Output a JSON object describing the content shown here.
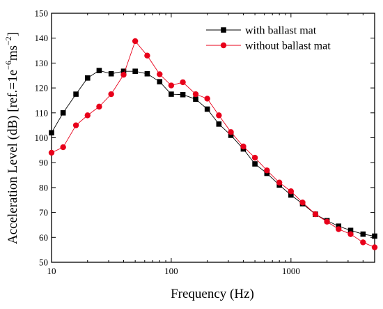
{
  "chart_data": {
    "type": "line",
    "xlabel": "Frequency (Hz)",
    "ylabel_main": "Acceleration Level (dB) [ref.=1e",
    "ylabel_sup1": "−6",
    "ylabel_mid": "ms",
    "ylabel_sup2": "−2",
    "ylabel_end": "]",
    "xscale": "log",
    "xlim": [
      10,
      5000
    ],
    "ylim": [
      50,
      150
    ],
    "x_ticks": [
      {
        "value": 10,
        "label": "10"
      },
      {
        "value": 100,
        "label": "100"
      },
      {
        "value": 1000,
        "label": "1000"
      }
    ],
    "y_ticks": [
      {
        "value": 50,
        "label": "50"
      },
      {
        "value": 60,
        "label": "60"
      },
      {
        "value": 70,
        "label": "70"
      },
      {
        "value": 80,
        "label": "80"
      },
      {
        "value": 90,
        "label": "90"
      },
      {
        "value": 100,
        "label": "100"
      },
      {
        "value": 110,
        "label": "110"
      },
      {
        "value": 120,
        "label": "120"
      },
      {
        "value": 130,
        "label": "130"
      },
      {
        "value": 140,
        "label": "140"
      },
      {
        "value": 150,
        "label": "150"
      }
    ],
    "legend_position": "top-right",
    "grid": false,
    "x": [
      10,
      12.5,
      16,
      20,
      25,
      31.5,
      40,
      50,
      63,
      80,
      100,
      125,
      160,
      200,
      250,
      315,
      400,
      500,
      630,
      800,
      1000,
      1250,
      1600,
      2000,
      2500,
      3150,
      4000,
      5000
    ],
    "series": [
      {
        "name": "with ballast mat",
        "marker": "square",
        "color": "#000000",
        "line_color": "#000000",
        "values": [
          102,
          110,
          117.5,
          124,
          127,
          125.7,
          126.7,
          126.7,
          125.7,
          122.5,
          117.5,
          117.3,
          115.5,
          111.5,
          105.5,
          101,
          95.5,
          89.5,
          85.7,
          81,
          77,
          73.5,
          69.3,
          66.7,
          64.5,
          62.8,
          61.3,
          60.5
        ]
      },
      {
        "name": "without ballast mat",
        "marker": "circle",
        "color": "#e8001a",
        "line_color": "#e8001a",
        "values": [
          94,
          96.2,
          105,
          109,
          112.5,
          117.5,
          125.3,
          138.8,
          133,
          125.5,
          121,
          122.3,
          117.5,
          115.7,
          109,
          102.3,
          96.5,
          92,
          86.9,
          82,
          78.5,
          74,
          69.3,
          66.3,
          63.3,
          61.3,
          58,
          56
        ]
      }
    ]
  }
}
